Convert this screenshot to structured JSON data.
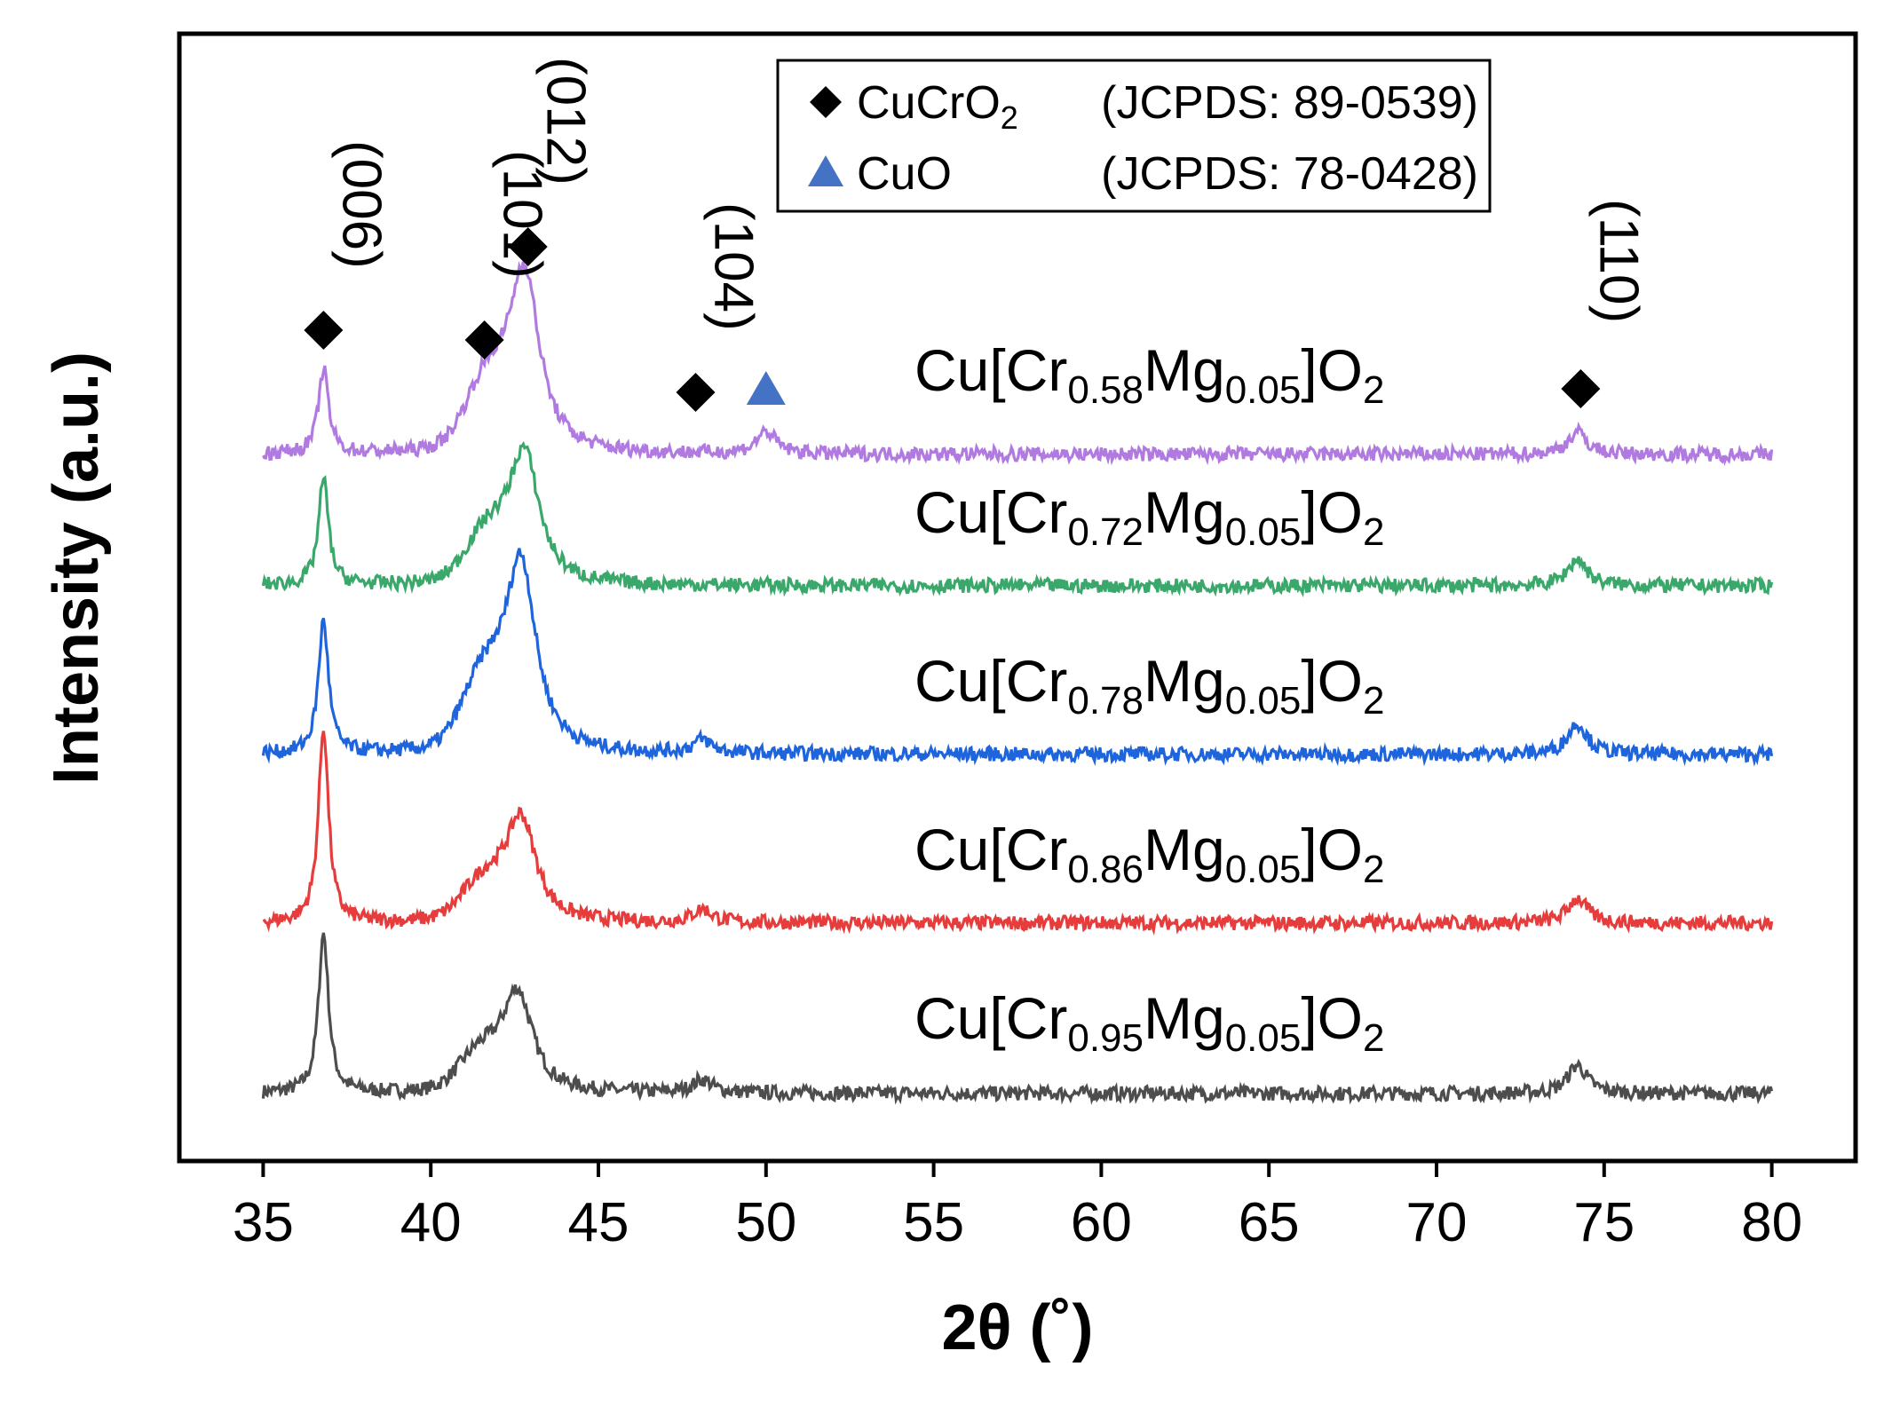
{
  "chart_data": {
    "type": "line",
    "title": "",
    "xlabel": "2θ (˚)",
    "ylabel": "Intensity (a.u.)",
    "xlim": [
      32.5,
      82.5
    ],
    "xticks": [
      35,
      40,
      45,
      50,
      55,
      60,
      65,
      70,
      75,
      80
    ],
    "yticks_shown": false,
    "series": [
      {
        "name": "Cu[Cr0.95Mg0.05]O2",
        "label_main": "Cu[Cr",
        "label_sub1": "0.95",
        "label_mid": "Mg",
        "label_sub2": "0.05",
        "label_end": "]O",
        "label_sub3": "2",
        "color": "#4d4d4d",
        "offset": 0,
        "peak_heights": {
          "36.8": 180,
          "42.6": 110,
          "48.1": 15,
          "74.2": 32
        }
      },
      {
        "name": "Cu[Cr0.86Mg0.05]O2",
        "label_main": "Cu[Cr",
        "label_sub1": "0.86",
        "label_mid": "Mg",
        "label_sub2": "0.05",
        "label_end": "]O",
        "label_sub3": "2",
        "color": "#e63c3c",
        "offset": 1,
        "peak_heights": {
          "36.8": 220,
          "42.7": 115,
          "48.1": 15,
          "74.2": 28
        }
      },
      {
        "name": "Cu[Cr0.78Mg0.05]O2",
        "label_main": "Cu[Cr",
        "label_sub1": "0.78",
        "label_mid": "Mg",
        "label_sub2": "0.05",
        "label_end": "]O",
        "label_sub3": "2",
        "color": "#1e64dc",
        "offset": 2,
        "peak_heights": {
          "36.8": 150,
          "42.7": 210,
          "48.1": 15,
          "74.2": 35
        }
      },
      {
        "name": "Cu[Cr0.72Mg0.05]O2",
        "label_main": "Cu[Cr",
        "label_sub1": "0.72",
        "label_mid": "Mg",
        "label_sub2": "0.05",
        "label_end": "]O",
        "label_sub3": "2",
        "color": "#3aa86a",
        "offset": 3,
        "peak_heights": {
          "36.8": 120,
          "42.8": 145,
          "74.2": 30
        }
      },
      {
        "name": "Cu[Cr0.58Mg0.05]O2",
        "label_main": "Cu[Cr",
        "label_sub1": "0.58",
        "label_mid": "Mg",
        "label_sub2": "0.05",
        "label_end": "]O",
        "label_sub3": "2",
        "color": "#b07ae0",
        "offset": 4,
        "peak_heights": {
          "36.8": 95,
          "42.8": 200,
          "50.0": 25,
          "74.2": 25
        }
      }
    ],
    "reflections": [
      {
        "hkl": "(006)",
        "x": 36.8,
        "phase": "CuCrO2"
      },
      {
        "hkl": "(101)",
        "x": 41.6,
        "phase": "CuCrO2"
      },
      {
        "hkl": "(012)",
        "x": 42.9,
        "phase": "CuCrO2"
      },
      {
        "hkl": "(104)",
        "x": 47.9,
        "phase": "CuCrO2"
      },
      {
        "hkl": "",
        "x": 50.0,
        "phase": "CuO"
      },
      {
        "hkl": "(110)",
        "x": 74.3,
        "phase": "CuCrO2"
      }
    ],
    "legend": {
      "placement": "top-center",
      "entries": [
        {
          "marker": "diamond",
          "color": "#000000",
          "name_main": "CuCrO",
          "name_sub": "2",
          "ref": "(JCPDS: 89-0539)"
        },
        {
          "marker": "triangle",
          "color": "#4472c4",
          "name_main": "CuO",
          "name_sub": "",
          "ref": "(JCPDS: 78-0428)"
        }
      ]
    }
  }
}
